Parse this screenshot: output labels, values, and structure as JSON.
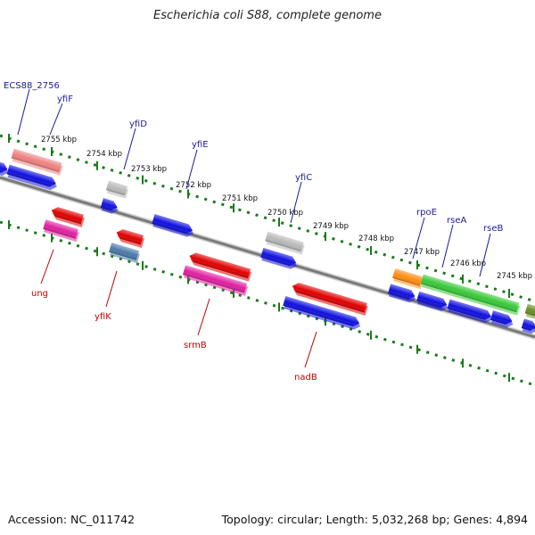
{
  "title": "Escherichia coli S88, complete genome",
  "footer": {
    "accession": "Accession: NC_011742",
    "summary": "Topology: circular; Length: 5,032,268 bp; Genes: 4,894"
  },
  "scale_labels": [
    "2755 kbp",
    "2754 kbp",
    "2753 kbp",
    "2752 kbp",
    "2751 kbp",
    "2750 kbp",
    "2749 kbp",
    "2748 kbp",
    "2747 kbp",
    "2746 kbp",
    "2745 kbp"
  ],
  "gene_labels_top": [
    "ECS88_2756",
    "yfiF",
    "yfiD",
    "yfiE",
    "yfiC",
    "rpoE",
    "rseA",
    "rseB"
  ],
  "gene_labels_bottom": [
    "ung",
    "yfiK",
    "srmB",
    "nadB"
  ],
  "colors": {
    "backbone": "#808080",
    "scale_ticks": "#1a7a1a",
    "label_top": "#1a1a9a",
    "label_bottom": "#c00000",
    "cds_blue": "#1010e0",
    "cds_red": "#e00000",
    "cds_pink": "#ef8080",
    "cds_magenta": "#e020a0",
    "cds_gray": "#b8b8b8",
    "cds_orange": "#ff8c10",
    "cds_green": "#38c838",
    "cds_olive": "#6b8e23",
    "cds_steel": "#4a7aa8"
  }
}
